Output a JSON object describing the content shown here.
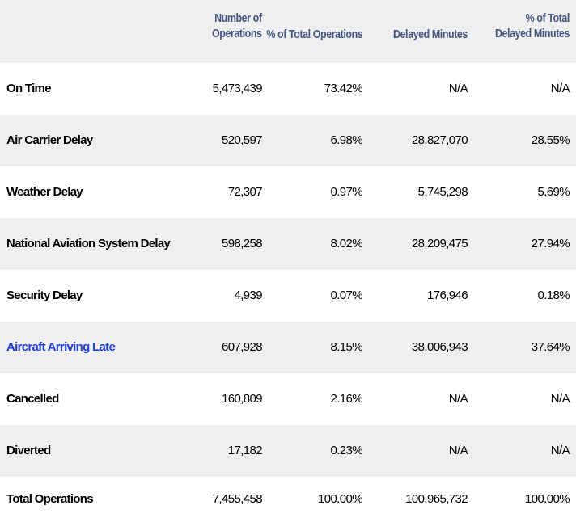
{
  "header": {
    "col1": [
      "Number of",
      "Operations"
    ],
    "col2": "% of Total Operations",
    "col3": "Delayed Minutes",
    "col4": [
      "% of Total",
      "Delayed Minutes"
    ]
  },
  "colors": {
    "header_text": "#44557f",
    "link_text": "#1f3fd6",
    "shaded_row": "#efefef"
  },
  "rows": [
    {
      "label": "On Time",
      "operations": "5,473,439",
      "pct_operations": "73.42%",
      "delayed_minutes": "N/A",
      "pct_delayed_minutes": "N/A"
    },
    {
      "label": "Air Carrier Delay",
      "operations": "520,597",
      "pct_operations": "6.98%",
      "delayed_minutes": "28,827,070",
      "pct_delayed_minutes": "28.55%"
    },
    {
      "label": "Weather Delay",
      "operations": "72,307",
      "pct_operations": "0.97%",
      "delayed_minutes": "5,745,298",
      "pct_delayed_minutes": "5.69%"
    },
    {
      "label": "National Aviation System Delay",
      "operations": "598,258",
      "pct_operations": "8.02%",
      "delayed_minutes": "28,209,475",
      "pct_delayed_minutes": "27.94%"
    },
    {
      "label": "Security Delay",
      "operations": "4,939",
      "pct_operations": "0.07%",
      "delayed_minutes": "176,946",
      "pct_delayed_minutes": "0.18%"
    },
    {
      "label": "Aircraft Arriving Late",
      "operations": "607,928",
      "pct_operations": "8.15%",
      "delayed_minutes": "38,006,943",
      "pct_delayed_minutes": "37.64%"
    },
    {
      "label": "Cancelled",
      "operations": "160,809",
      "pct_operations": "2.16%",
      "delayed_minutes": "N/A",
      "pct_delayed_minutes": "N/A"
    },
    {
      "label": "Diverted",
      "operations": "17,182",
      "pct_operations": "0.23%",
      "delayed_minutes": "N/A",
      "pct_delayed_minutes": "N/A"
    },
    {
      "label": "Total Operations",
      "operations": "7,455,458",
      "pct_operations": "100.00%",
      "delayed_minutes": "100,965,732",
      "pct_delayed_minutes": "100.00%"
    }
  ]
}
